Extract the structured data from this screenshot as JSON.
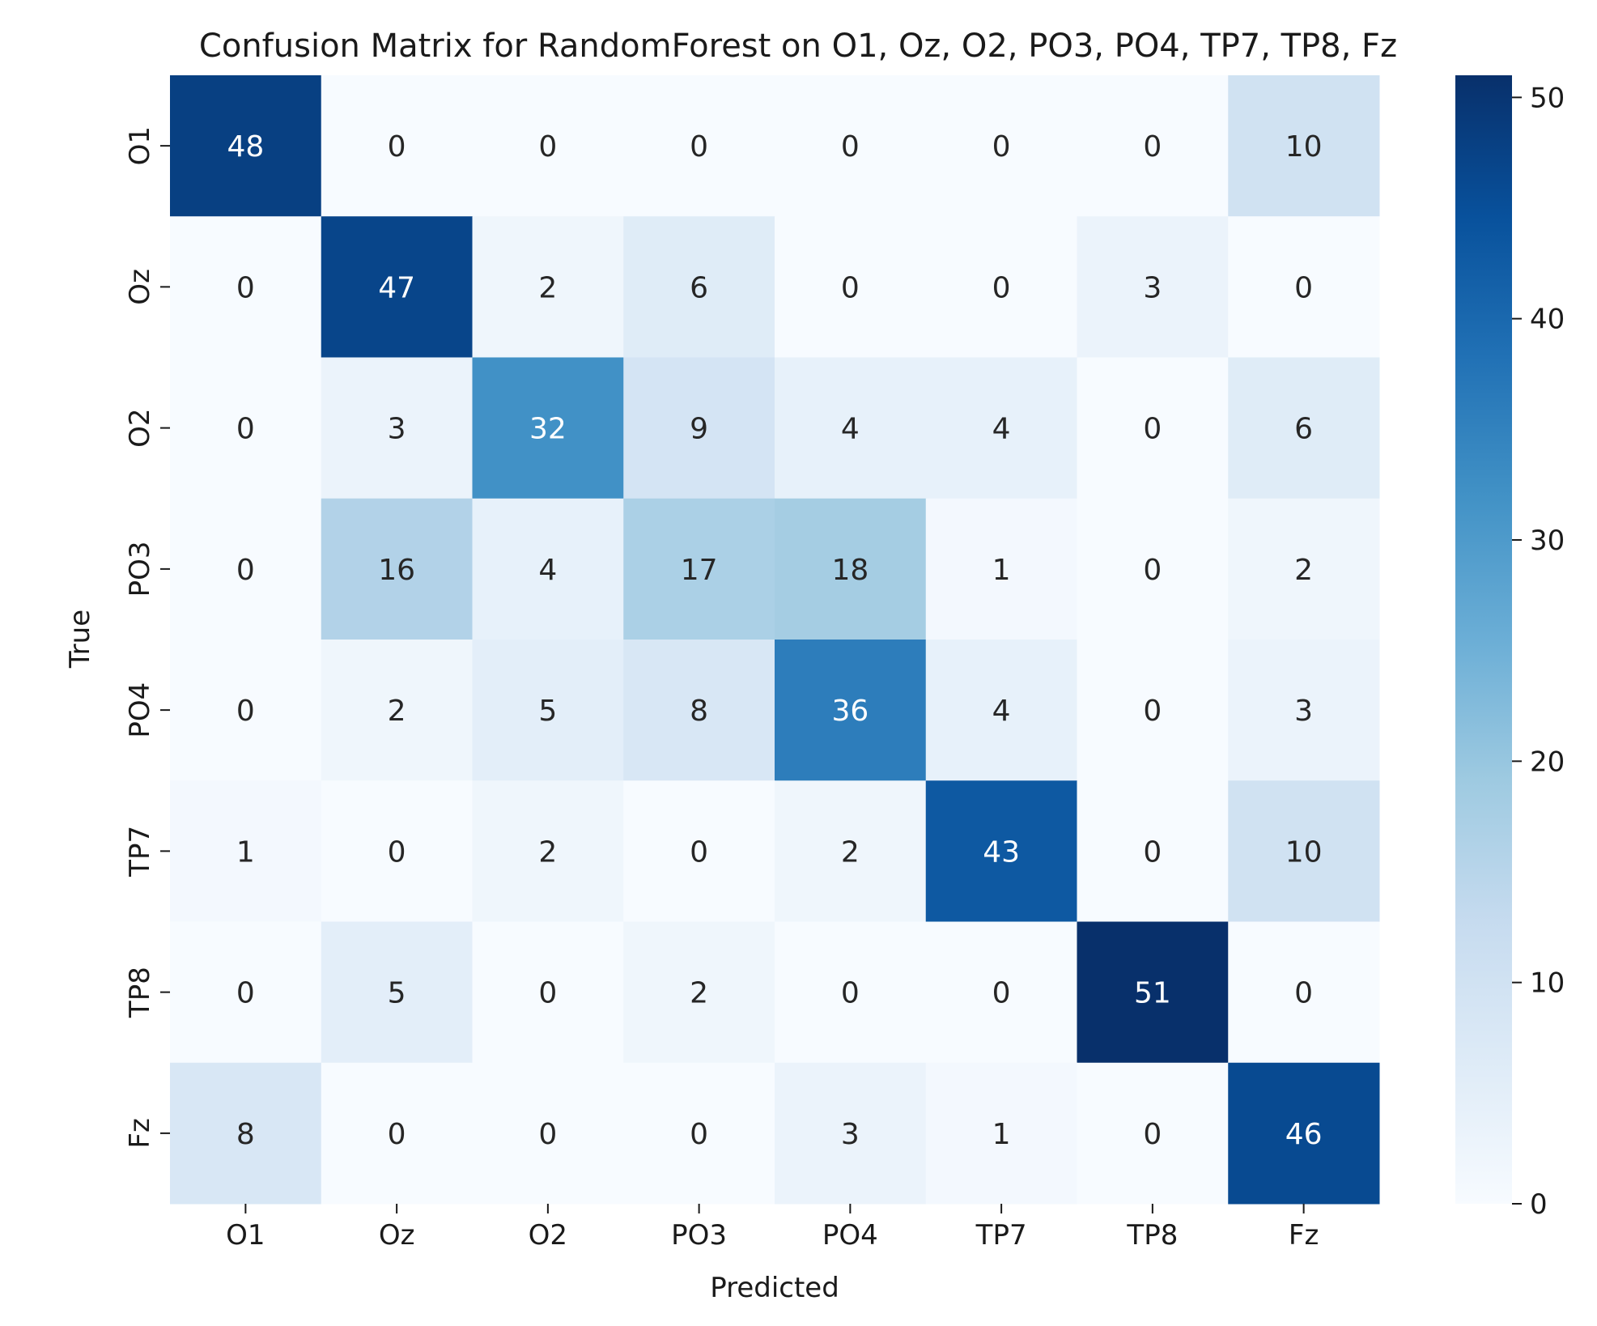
{
  "chart_data": {
    "type": "heatmap",
    "title": "Confusion Matrix for RandomForest on O1, Oz, O2, PO3, PO4, TP7, TP8, Fz",
    "xlabel": "Predicted",
    "ylabel": "True",
    "x_categories": [
      "O1",
      "Oz",
      "O2",
      "PO3",
      "PO4",
      "TP7",
      "TP8",
      "Fz"
    ],
    "y_categories": [
      "O1",
      "Oz",
      "O2",
      "PO3",
      "PO4",
      "TP7",
      "TP8",
      "Fz"
    ],
    "values": [
      [
        48,
        0,
        0,
        0,
        0,
        0,
        0,
        10
      ],
      [
        0,
        47,
        2,
        6,
        0,
        0,
        3,
        0
      ],
      [
        0,
        3,
        32,
        9,
        4,
        4,
        0,
        6
      ],
      [
        0,
        16,
        4,
        17,
        18,
        1,
        0,
        2
      ],
      [
        0,
        2,
        5,
        8,
        36,
        4,
        0,
        3
      ],
      [
        1,
        0,
        2,
        0,
        2,
        43,
        0,
        10
      ],
      [
        0,
        5,
        0,
        2,
        0,
        0,
        51,
        0
      ],
      [
        8,
        0,
        0,
        0,
        3,
        1,
        0,
        46
      ]
    ],
    "colormap": "Blues",
    "colorbar": {
      "min": 0,
      "max": 51,
      "ticks": [
        0,
        10,
        20,
        30,
        40,
        50
      ],
      "tick_labels": [
        "0",
        "10",
        "20",
        "30",
        "40",
        "50"
      ]
    },
    "annotations": true,
    "grid": false
  }
}
